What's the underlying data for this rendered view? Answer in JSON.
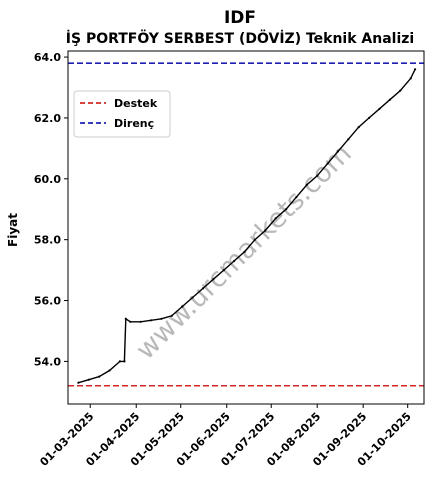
{
  "chart_data": {
    "type": "line",
    "title": "IDF",
    "subtitle": "İŞ PORTFÖY SERBEST (DÖVİZ) Teknik Analizi",
    "xlabel": "",
    "ylabel": "Fiyat",
    "watermark": "www.urcmarkets.com",
    "grid": false,
    "legend": {
      "placement": "top-left",
      "entries": [
        "Destek",
        "Direnç"
      ]
    },
    "xlim": [
      "2025-02-14",
      "2025-10-12"
    ],
    "ylim": [
      52.6,
      64.2
    ],
    "x_ticks": [
      "2025-03-01",
      "2025-04-01",
      "2025-05-01",
      "2025-06-01",
      "2025-07-01",
      "2025-08-01",
      "2025-09-01",
      "2025-10-01"
    ],
    "x_tick_labels": [
      "01-03-2025",
      "01-04-2025",
      "01-05-2025",
      "01-06-2025",
      "01-07-2025",
      "01-08-2025",
      "01-09-2025",
      "01-10-2025"
    ],
    "y_ticks": [
      54.0,
      56.0,
      58.0,
      60.0,
      62.0,
      64.0
    ],
    "y_tick_labels": [
      "54.0",
      "56.0",
      "58.0",
      "60.0",
      "62.0",
      "64.0"
    ],
    "reference_lines": [
      {
        "name": "Destek",
        "value": 53.2,
        "color": "#d62728",
        "style": "dashed"
      },
      {
        "name": "Direnç",
        "value": 63.8,
        "color": "#1f1fb4",
        "style": "dashed"
      }
    ],
    "series": [
      {
        "color": "#000000",
        "points": [
          {
            "x": "2025-02-21",
            "y": 53.3
          },
          {
            "x": "2025-02-28",
            "y": 53.4
          },
          {
            "x": "2025-03-07",
            "y": 53.5
          },
          {
            "x": "2025-03-14",
            "y": 53.7
          },
          {
            "x": "2025-03-21",
            "y": 54.0
          },
          {
            "x": "2025-03-24",
            "y": 54.0
          },
          {
            "x": "2025-03-25",
            "y": 55.4
          },
          {
            "x": "2025-03-28",
            "y": 55.3
          },
          {
            "x": "2025-04-04",
            "y": 55.3
          },
          {
            "x": "2025-04-11",
            "y": 55.35
          },
          {
            "x": "2025-04-18",
            "y": 55.4
          },
          {
            "x": "2025-04-25",
            "y": 55.5
          },
          {
            "x": "2025-05-02",
            "y": 55.8
          },
          {
            "x": "2025-05-09",
            "y": 56.1
          },
          {
            "x": "2025-05-16",
            "y": 56.4
          },
          {
            "x": "2025-05-23",
            "y": 56.7
          },
          {
            "x": "2025-05-30",
            "y": 57.0
          },
          {
            "x": "2025-06-06",
            "y": 57.3
          },
          {
            "x": "2025-06-13",
            "y": 57.6
          },
          {
            "x": "2025-06-20",
            "y": 58.0
          },
          {
            "x": "2025-06-27",
            "y": 58.3
          },
          {
            "x": "2025-07-04",
            "y": 58.7
          },
          {
            "x": "2025-07-11",
            "y": 59.0
          },
          {
            "x": "2025-07-18",
            "y": 59.4
          },
          {
            "x": "2025-07-25",
            "y": 59.8
          },
          {
            "x": "2025-08-01",
            "y": 60.1
          },
          {
            "x": "2025-08-08",
            "y": 60.5
          },
          {
            "x": "2025-08-15",
            "y": 60.9
          },
          {
            "x": "2025-08-22",
            "y": 61.3
          },
          {
            "x": "2025-08-29",
            "y": 61.7
          },
          {
            "x": "2025-09-05",
            "y": 62.0
          },
          {
            "x": "2025-09-12",
            "y": 62.3
          },
          {
            "x": "2025-09-19",
            "y": 62.6
          },
          {
            "x": "2025-09-26",
            "y": 62.9
          },
          {
            "x": "2025-10-03",
            "y": 63.3
          },
          {
            "x": "2025-10-06",
            "y": 63.6
          }
        ]
      }
    ]
  }
}
